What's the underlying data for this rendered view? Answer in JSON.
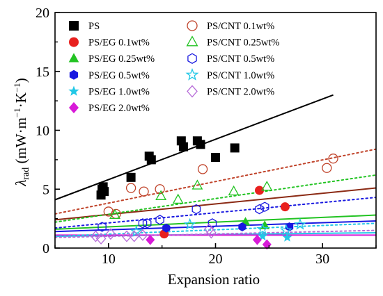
{
  "chart_data": {
    "type": "scatter",
    "xlabel": "Expansion ratio",
    "ylabel": {
      "symbol": "λ",
      "subscript": "rad",
      "unit_open": " (mW·m",
      "unit_exp1": "−1",
      "unit_mid": "·K",
      "unit_exp2": "−1",
      "unit_close": ")"
    },
    "xlim": [
      5,
      35
    ],
    "ylim": [
      0,
      20
    ],
    "x_ticks": [
      10,
      20,
      30
    ],
    "x_tick_labels": [
      "10",
      "20",
      "30"
    ],
    "y_ticks": [
      0,
      5,
      10,
      15,
      20
    ],
    "y_tick_labels": [
      "0",
      "5",
      "10",
      "15",
      "20"
    ],
    "grid": false,
    "legend_position": "top-left",
    "series": [
      {
        "name": "PS",
        "marker": "square",
        "filled": true,
        "color": "#000000",
        "points": [
          [
            9.3,
            4.5
          ],
          [
            9.4,
            5.0
          ],
          [
            9.5,
            5.2
          ],
          [
            9.6,
            4.8
          ],
          [
            12.1,
            6.0
          ],
          [
            13.8,
            7.8
          ],
          [
            14.0,
            7.5
          ],
          [
            16.8,
            9.1
          ],
          [
            17.0,
            8.6
          ],
          [
            18.3,
            9.1
          ],
          [
            18.6,
            8.8
          ],
          [
            20.0,
            7.7
          ],
          [
            21.8,
            8.5
          ]
        ],
        "fit": {
          "x": [
            5,
            31
          ],
          "y": [
            4.1,
            13.0
          ],
          "dashed": false
        }
      },
      {
        "name": "PS/EG 0.1wt%",
        "marker": "circle",
        "filled": true,
        "color": "#e8201e",
        "points": [
          [
            15.2,
            1.2
          ],
          [
            24.1,
            4.9
          ],
          [
            26.5,
            3.5
          ]
        ],
        "fit": {
          "x": [
            5,
            35
          ],
          "y": [
            2.4,
            5.1
          ],
          "dashed": false,
          "color": "#8b2a14"
        }
      },
      {
        "name": "PS/EG 0.25wt%",
        "marker": "triangle",
        "filled": true,
        "color": "#22c322",
        "points": [
          [
            22.8,
            2.2
          ],
          [
            24.6,
            1.9
          ]
        ],
        "fit": {
          "x": [
            5,
            35
          ],
          "y": [
            1.6,
            2.8
          ],
          "dashed": false
        }
      },
      {
        "name": "PS/EG 0.5wt%",
        "marker": "hexagon",
        "filled": true,
        "color": "#1818e0",
        "points": [
          [
            15.4,
            1.7
          ],
          [
            22.5,
            1.8
          ],
          [
            26.9,
            1.8
          ]
        ],
        "fit": {
          "x": [
            5,
            35
          ],
          "y": [
            1.4,
            2.3
          ],
          "dashed": false
        }
      },
      {
        "name": "PS/EG 1.0wt%",
        "marker": "star",
        "filled": true,
        "color": "#22c8e6",
        "points": [
          [
            24.4,
            1.0
          ],
          [
            26.7,
            0.9
          ]
        ],
        "fit": {
          "x": [
            5,
            35
          ],
          "y": [
            1.0,
            1.3
          ],
          "dashed": false
        }
      },
      {
        "name": "PS/EG 2.0wt%",
        "marker": "diamond",
        "filled": true,
        "color": "#d81ad8",
        "points": [
          [
            13.9,
            0.7
          ],
          [
            23.9,
            0.7
          ],
          [
            24.8,
            0.3
          ]
        ],
        "fit": {
          "x": [
            5,
            35
          ],
          "y": [
            1.1,
            1.1
          ],
          "dashed": false
        }
      },
      {
        "name": "PS/CNT 0.1wt%",
        "marker": "circle",
        "filled": false,
        "color": "#c0432a",
        "points": [
          [
            10.0,
            3.1
          ],
          [
            10.7,
            2.9
          ],
          [
            12.1,
            5.1
          ],
          [
            13.3,
            4.8
          ],
          [
            14.8,
            5.0
          ],
          [
            18.8,
            6.7
          ],
          [
            30.4,
            6.8
          ],
          [
            31.0,
            7.6
          ]
        ],
        "fit": {
          "x": [
            5,
            35
          ],
          "y": [
            2.9,
            8.4
          ],
          "dashed": true
        }
      },
      {
        "name": "PS/CNT 0.25wt%",
        "marker": "triangle",
        "filled": false,
        "color": "#22c322",
        "points": [
          [
            10.6,
            2.8
          ],
          [
            14.9,
            4.4
          ],
          [
            16.5,
            4.1
          ],
          [
            18.3,
            5.3
          ],
          [
            21.7,
            4.8
          ],
          [
            24.8,
            5.2
          ]
        ],
        "fit": {
          "x": [
            5,
            35
          ],
          "y": [
            2.2,
            6.2
          ],
          "dashed": true
        }
      },
      {
        "name": "PS/CNT 0.5wt%",
        "marker": "hexagon",
        "filled": false,
        "color": "#1818e0",
        "points": [
          [
            9.4,
            1.8
          ],
          [
            13.2,
            2.1
          ],
          [
            13.6,
            2.1
          ],
          [
            14.8,
            2.4
          ],
          [
            18.2,
            3.3
          ],
          [
            19.7,
            2.1
          ],
          [
            24.1,
            3.3
          ],
          [
            24.6,
            3.5
          ]
        ],
        "fit": {
          "x": [
            5,
            35
          ],
          "y": [
            1.7,
            4.3
          ],
          "dashed": true
        }
      },
      {
        "name": "PS/CNT 1.0wt%",
        "marker": "star",
        "filled": false,
        "color": "#22c8e6",
        "points": [
          [
            12.6,
            1.4
          ],
          [
            17.6,
            2.0
          ],
          [
            24.4,
            1.6
          ],
          [
            26.6,
            1.5
          ],
          [
            27.9,
            2.0
          ]
        ],
        "fit": {
          "x": [
            5,
            35
          ],
          "y": [
            1.0,
            2.1
          ],
          "dashed": true
        }
      },
      {
        "name": "PS/CNT 2.0wt%",
        "marker": "diamond",
        "filled": false,
        "color": "#b66ad8",
        "points": [
          [
            8.8,
            1.0
          ],
          [
            9.3,
            0.8
          ],
          [
            10.2,
            1.2
          ],
          [
            11.7,
            1.0
          ],
          [
            12.4,
            1.0
          ],
          [
            13.2,
            1.1
          ],
          [
            19.6,
            1.3
          ],
          [
            19.4,
            1.6
          ]
        ],
        "fit": {
          "x": [
            5,
            35
          ],
          "y": [
            0.9,
            1.5
          ],
          "dashed": true
        }
      }
    ]
  }
}
